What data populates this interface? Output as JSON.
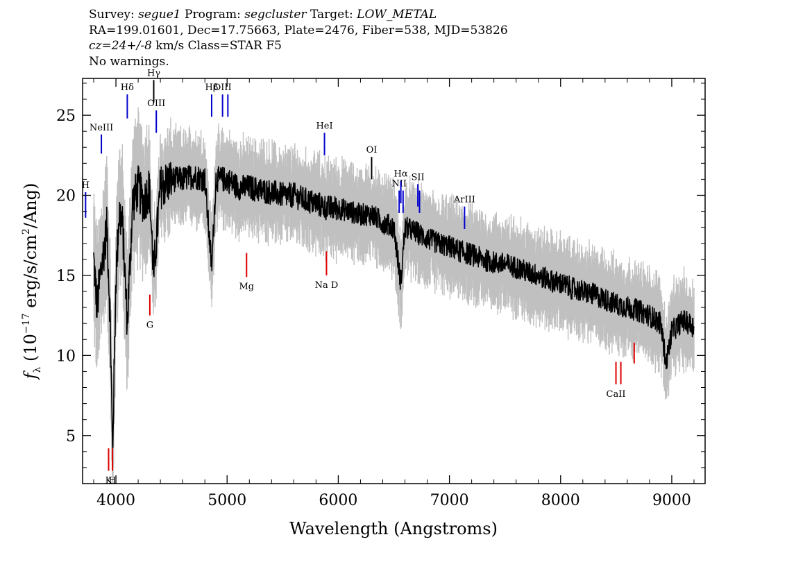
{
  "header": {
    "line1": {
      "survey_label": "Survey:",
      "survey": "segue1",
      "program_label": "Program:",
      "program": "segcluster",
      "target_label": "Target:",
      "target": "LOW_METAL"
    },
    "line2": "RA=199.01601, Dec=17.75663, Plate=2476, Fiber=538, MJD=53826",
    "line3": {
      "cz": "cz=24+/-8",
      "rest": "km/s Class=STAR F5"
    },
    "line4": "No warnings."
  },
  "colors": {
    "flux": "#000000",
    "error": "#c0c0c0",
    "emission": "#0000cc",
    "absorption": "#dd0000",
    "sky": "#000000"
  },
  "chart_data": {
    "type": "line",
    "xlabel": "Wavelength (Angstroms)",
    "ylabel": "f_λ (10^-17 erg/s/cm^2/Ang)",
    "ylabel_parts": {
      "f": "f",
      "sub": "λ",
      "a": " (10",
      "exp1": "−17",
      "b": " erg/s/cm",
      "exp2": "2",
      "c": "/Ang)"
    },
    "xlim": [
      3700,
      9300
    ],
    "ylim": [
      2,
      27.3
    ],
    "x_ticks": [
      4000,
      5000,
      6000,
      7000,
      8000,
      9000
    ],
    "y_ticks": [
      5,
      10,
      15,
      20,
      25
    ],
    "x_tick_labels": [
      "4000",
      "5000",
      "6000",
      "7000",
      "8000",
      "9000"
    ],
    "y_tick_labels": [
      "5",
      "10",
      "15",
      "20",
      "25"
    ],
    "flux_series": {
      "name": "flux",
      "x": [
        3800,
        3830,
        3860,
        3890,
        3920,
        3950,
        3970,
        4000,
        4030,
        4060,
        4102,
        4150,
        4200,
        4250,
        4300,
        4340,
        4400,
        4500,
        4600,
        4700,
        4800,
        4861,
        4900,
        5000,
        5100,
        5200,
        5300,
        5400,
        5500,
        5600,
        5700,
        5800,
        5900,
        6000,
        6100,
        6200,
        6300,
        6400,
        6500,
        6563,
        6600,
        6700,
        6800,
        6900,
        7000,
        7100,
        7200,
        7300,
        7400,
        7500,
        7600,
        7700,
        7800,
        7900,
        8000,
        8100,
        8200,
        8300,
        8400,
        8500,
        8600,
        8700,
        8800,
        8900,
        8950,
        9000,
        9100,
        9200
      ],
      "y": [
        16.0,
        13.0,
        15.0,
        16.5,
        18.0,
        12.0,
        3.8,
        15.0,
        19.0,
        18.0,
        12.0,
        19.5,
        20.5,
        19.5,
        20.5,
        15.0,
        20.5,
        21.0,
        21.0,
        21.2,
        21.0,
        15.5,
        21.0,
        21.0,
        20.5,
        20.5,
        20.3,
        20.2,
        20.0,
        20.0,
        19.7,
        19.5,
        19.2,
        19.2,
        19.0,
        18.8,
        18.8,
        18.3,
        18.0,
        14.5,
        18.0,
        17.7,
        17.3,
        17.0,
        16.8,
        16.5,
        16.3,
        16.0,
        15.8,
        15.7,
        15.5,
        15.2,
        15.0,
        14.7,
        14.5,
        14.2,
        14.0,
        13.8,
        13.5,
        13.2,
        13.0,
        12.8,
        12.5,
        12.0,
        9.5,
        11.5,
        12.2,
        11.8
      ]
    },
    "line_markers": [
      {
        "label": "H",
        "x": 3727,
        "type": "emission",
        "y0": 18.6,
        "y1": 20.2,
        "label_y": 20.5
      },
      {
        "label": "NeIII",
        "x": 3869,
        "type": "emission",
        "y0": 22.6,
        "y1": 23.8,
        "label_y": 24.1
      },
      {
        "label": "Hδ",
        "x": 4102,
        "type": "emission",
        "y0": 24.8,
        "y1": 26.3,
        "label_y": 26.6
      },
      {
        "label": "Hγ",
        "x": 4340,
        "type": "sky",
        "y0": 25.8,
        "y1": 27.2,
        "label_y": 27.2
      },
      {
        "label": "OIII",
        "x": 4363,
        "type": "emission",
        "y0": 23.9,
        "y1": 25.3,
        "label_y": 25.6
      },
      {
        "label": "Hβ",
        "x": 4861,
        "type": "emission",
        "y0": 24.9,
        "y1": 26.3,
        "label_y": 26.6
      },
      {
        "label": "OIII",
        "x": 4959,
        "type": "emission",
        "y0": 24.9,
        "y1": 26.3,
        "label_y": 26.6
      },
      {
        "label": "",
        "x": 5007,
        "type": "emission",
        "y0": 24.9,
        "y1": 26.3,
        "label_y": 26.6
      },
      {
        "label": "HeI",
        "x": 5876,
        "type": "emission",
        "y0": 22.5,
        "y1": 23.9,
        "label_y": 24.2
      },
      {
        "label": "OI",
        "x": 6300,
        "type": "sky",
        "y0": 21.0,
        "y1": 22.4,
        "label_y": 22.7
      },
      {
        "label": "NII",
        "x": 6548,
        "type": "emission",
        "y0": 18.9,
        "y1": 20.3,
        "label_y": 20.6
      },
      {
        "label": "Hα",
        "x": 6563,
        "type": "emission",
        "y0": 19.5,
        "y1": 20.9,
        "label_y": 21.2
      },
      {
        "label": "",
        "x": 6583,
        "type": "emission",
        "y0": 18.9,
        "y1": 20.3,
        "label_y": 20.6
      },
      {
        "label": "SII",
        "x": 6716,
        "type": "emission",
        "y0": 19.3,
        "y1": 20.7,
        "label_y": 21.0
      },
      {
        "label": "",
        "x": 6731,
        "type": "emission",
        "y0": 18.9,
        "y1": 20.3,
        "label_y": 20.6
      },
      {
        "label": "ArIII",
        "x": 7136,
        "type": "emission",
        "y0": 17.9,
        "y1": 19.3,
        "label_y": 19.6
      },
      {
        "label": "Mg",
        "x": 5175,
        "type": "absorption",
        "y0": 14.9,
        "y1": 16.4,
        "label_y": 14.0
      },
      {
        "label": "Na D",
        "x": 5894,
        "type": "absorption",
        "y0": 15.0,
        "y1": 16.5,
        "label_y": 14.1
      },
      {
        "label": "G",
        "x": 4305,
        "type": "absorption",
        "y0": 12.5,
        "y1": 13.8,
        "label_y": 11.6
      },
      {
        "label": "K",
        "x": 3934,
        "type": "absorption",
        "y0": 2.8,
        "y1": 4.2,
        "label_y": 1.9
      },
      {
        "label": "H",
        "x": 3969,
        "type": "absorption",
        "y0": 2.8,
        "y1": 4.2,
        "label_y": 1.9
      },
      {
        "label": "CaII",
        "x": 8498,
        "type": "absorption",
        "y0": 8.2,
        "y1": 9.6,
        "label_y": 7.5
      },
      {
        "label": "",
        "x": 8542,
        "type": "absorption",
        "y0": 8.2,
        "y1": 9.6,
        "label_y": 7.5
      },
      {
        "label": "",
        "x": 8662,
        "type": "absorption",
        "y0": 9.5,
        "y1": 10.8,
        "label_y": 7.5
      }
    ]
  }
}
